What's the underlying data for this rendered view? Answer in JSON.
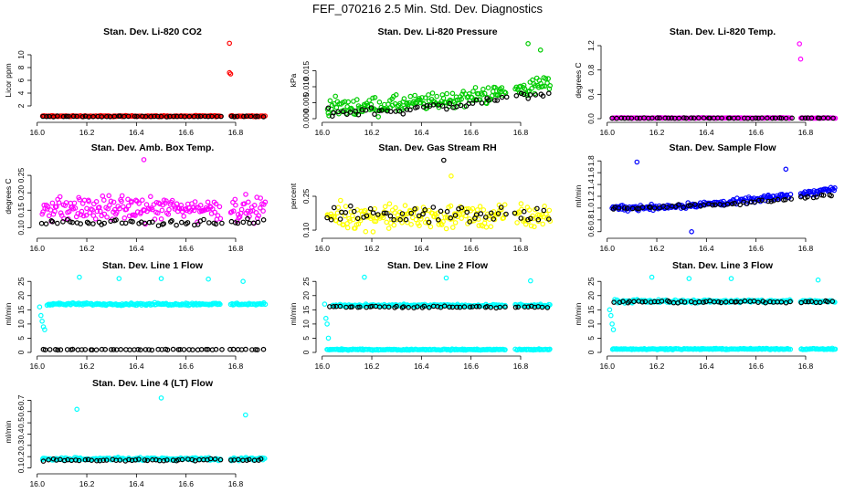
{
  "page": {
    "title": "FEF_070216  2.5 Min. Std. Dev. Diagnostics"
  },
  "chart_data": [
    {
      "type": "scatter",
      "title": "Stan. Dev. Li-820 CO2",
      "ylabel": "Licor ppm",
      "xlim": [
        15.99,
        16.94
      ],
      "ylim": [
        0,
        12
      ],
      "yticks": [
        2,
        4,
        6,
        8,
        10
      ],
      "yticklabels": [
        "2",
        "4",
        "6",
        "8",
        "10"
      ],
      "xticks": [
        16.0,
        16.2,
        16.4,
        16.6,
        16.8
      ],
      "xticklabels": [
        "16.0",
        "16.2",
        "16.4",
        "16.6",
        "16.8"
      ],
      "grid": false,
      "series": [
        {
          "name": "red",
          "color": "#ff0000",
          "level": 0.4,
          "spread": 0.12,
          "segments": [
            [
              16.02,
              16.74
            ],
            [
              16.78,
              16.92
            ]
          ],
          "outliers": [
            [
              16.775,
              11.8
            ],
            [
              16.775,
              7.2
            ],
            [
              16.78,
              7.0
            ]
          ]
        },
        {
          "name": "black",
          "color": "#000000",
          "level": 0.35,
          "spread": 0.08,
          "segments": [
            [
              16.02,
              16.74
            ],
            [
              16.78,
              16.92
            ]
          ]
        }
      ]
    },
    {
      "type": "scatter",
      "title": "Stan. Dev. Li-820 Pressure",
      "ylabel": "kPa",
      "xlim": [
        15.99,
        16.94
      ],
      "ylim": [
        0,
        0.024
      ],
      "yticks": [
        0.0,
        0.005,
        0.01,
        0.015
      ],
      "yticklabels": [
        "0.000",
        "0.005",
        "0.010",
        "0.015"
      ],
      "xticks": [
        16.0,
        16.2,
        16.4,
        16.6,
        16.8
      ],
      "xticklabels": [
        "16.0",
        "16.2",
        "16.4",
        "16.6",
        "16.8"
      ],
      "grid": false,
      "series": [
        {
          "name": "green",
          "color": "#00cc00",
          "level": 0.0035,
          "slope": 0.008,
          "spread": 0.004,
          "segments": [
            [
              16.02,
              16.74
            ],
            [
              16.78,
              16.92
            ]
          ],
          "outliers": [
            [
              16.83,
              0.0235
            ],
            [
              16.88,
              0.0215
            ]
          ]
        },
        {
          "name": "black",
          "color": "#000000",
          "level": 0.002,
          "slope": 0.007,
          "spread": 0.002,
          "segments": [
            [
              16.02,
              16.74
            ],
            [
              16.78,
              16.92
            ]
          ]
        }
      ]
    },
    {
      "type": "scatter",
      "title": "Stan. Dev. Li-820 Temp.",
      "ylabel": "degrees C",
      "xlim": [
        15.99,
        16.94
      ],
      "ylim": [
        0,
        1.26
      ],
      "yticks": [
        0.0,
        0.4,
        0.8,
        1.2
      ],
      "yticklabels": [
        "0.0",
        "0.4",
        "0.8",
        "1.2"
      ],
      "xticks": [
        16.0,
        16.2,
        16.4,
        16.6,
        16.8
      ],
      "xticklabels": [
        "16.0",
        "16.2",
        "16.4",
        "16.6",
        "16.8"
      ],
      "grid": false,
      "series": [
        {
          "name": "magenta",
          "color": "#ff00ff",
          "level": 0.01,
          "spread": 0.01,
          "segments": [
            [
              16.02,
              16.74
            ],
            [
              16.78,
              16.92
            ]
          ],
          "outliers": [
            [
              16.775,
              1.23
            ],
            [
              16.78,
              0.98
            ]
          ]
        },
        {
          "name": "black",
          "color": "#000000",
          "level": 0.01,
          "spread": 0.005,
          "segments": [
            [
              16.02,
              16.74
            ],
            [
              16.78,
              16.92
            ]
          ]
        }
      ]
    },
    {
      "type": "scatter",
      "title": "Stan. Dev. Amb. Box Temp.",
      "ylabel": "degrees C",
      "xlim": [
        15.99,
        16.94
      ],
      "ylim": [
        0.08,
        0.3
      ],
      "yticks": [
        0.1,
        0.15,
        0.2,
        0.25
      ],
      "yticklabels": [
        "0.10",
        "0.15",
        "0.20",
        "0.25"
      ],
      "xticks": [
        16.0,
        16.2,
        16.4,
        16.6,
        16.8
      ],
      "xticklabels": [
        "16.0",
        "16.2",
        "16.4",
        "16.6",
        "16.8"
      ],
      "grid": false,
      "series": [
        {
          "name": "magenta",
          "color": "#ff00ff",
          "level": 0.155,
          "spread": 0.05,
          "segments": [
            [
              16.02,
              16.74
            ],
            [
              16.78,
              16.92
            ]
          ],
          "outliers": [
            [
              16.43,
              0.295
            ]
          ]
        },
        {
          "name": "black",
          "color": "#000000",
          "level": 0.115,
          "spread": 0.012,
          "segments": [
            [
              16.02,
              16.74
            ],
            [
              16.78,
              16.92
            ]
          ]
        }
      ]
    },
    {
      "type": "scatter",
      "title": "Stan. Dev. Gas Stream RH",
      "ylabel": "percent",
      "xlim": [
        15.99,
        16.94
      ],
      "ylim": [
        0.08,
        0.42
      ],
      "yticks": [
        0.1,
        0.25
      ],
      "yticklabels": [
        "0.10",
        "0.25"
      ],
      "xticks": [
        16.0,
        16.2,
        16.4,
        16.6,
        16.8
      ],
      "xticklabels": [
        "16.0",
        "16.2",
        "16.4",
        "16.6",
        "16.8"
      ],
      "grid": false,
      "series": [
        {
          "name": "yellow",
          "color": "#ffff00",
          "level": 0.16,
          "spread": 0.08,
          "segments": [
            [
              16.02,
              16.74
            ],
            [
              16.78,
              16.92
            ]
          ],
          "outliers": [
            [
              16.52,
              0.34
            ]
          ]
        },
        {
          "name": "black",
          "color": "#000000",
          "level": 0.17,
          "spread": 0.05,
          "segments": [
            [
              16.02,
              16.74
            ],
            [
              16.78,
              16.92
            ]
          ],
          "outliers": [
            [
              16.49,
              0.41
            ]
          ]
        }
      ]
    },
    {
      "type": "scatter",
      "title": "Stan. Dev. Sample Flow",
      "ylabel": "ml/min",
      "xlim": [
        15.99,
        16.94
      ],
      "ylim": [
        0.55,
        1.85
      ],
      "yticks": [
        0.6,
        0.8,
        1.0,
        1.2,
        1.4,
        1.6,
        1.8
      ],
      "yticklabels": [
        "0.6",
        "0.8",
        "1.0",
        "1.2",
        "1.4",
        "1.6",
        "1.8"
      ],
      "xticks": [
        16.0,
        16.2,
        16.4,
        16.6,
        16.8
      ],
      "xticklabels": [
        "16.0",
        "16.2",
        "16.4",
        "16.6",
        "16.8"
      ],
      "grid": false,
      "series": [
        {
          "name": "blue",
          "color": "#0000ff",
          "level": 1.0,
          "slope": 0.35,
          "spread": 0.07,
          "segments": [
            [
              16.02,
              16.74
            ],
            [
              16.78,
              16.92
            ]
          ],
          "outliers": [
            [
              16.12,
              1.78
            ],
            [
              16.34,
              0.6
            ],
            [
              16.72,
              1.66
            ]
          ]
        },
        {
          "name": "black",
          "color": "#000000",
          "level": 1.0,
          "slope": 0.25,
          "spread": 0.04,
          "segments": [
            [
              16.02,
              16.74
            ],
            [
              16.78,
              16.92
            ]
          ]
        }
      ]
    },
    {
      "type": "scatter",
      "title": "Stan. Dev. Line 1 Flow",
      "ylabel": "ml/min",
      "xlim": [
        15.99,
        16.94
      ],
      "ylim": [
        0,
        27
      ],
      "yticks": [
        0,
        5,
        10,
        15,
        20,
        25
      ],
      "yticklabels": [
        "0",
        "5",
        "10",
        "15",
        "20",
        "25"
      ],
      "xticks": [
        16.0,
        16.2,
        16.4,
        16.6,
        16.8
      ],
      "xticklabels": [
        "16.0",
        "16.2",
        "16.4",
        "16.6",
        "16.8"
      ],
      "grid": false,
      "series": [
        {
          "name": "cyan",
          "color": "#00ffff",
          "level": 17.0,
          "spread": 0.6,
          "segments": [
            [
              16.04,
              16.74
            ],
            [
              16.78,
              16.92
            ]
          ],
          "outliers": [
            [
              16.01,
              16
            ],
            [
              16.015,
              13
            ],
            [
              16.02,
              11
            ],
            [
              16.025,
              9
            ],
            [
              16.03,
              8
            ],
            [
              16.17,
              26.5
            ],
            [
              16.33,
              26
            ],
            [
              16.5,
              26
            ],
            [
              16.69,
              25.8
            ],
            [
              16.83,
              25
            ]
          ]
        },
        {
          "name": "black",
          "color": "#000000",
          "level": 1.0,
          "spread": 0.2,
          "segments": [
            [
              16.02,
              16.74
            ],
            [
              16.78,
              16.92
            ]
          ]
        }
      ]
    },
    {
      "type": "scatter",
      "title": "Stan. Dev. Line 2 Flow",
      "ylabel": "ml/min",
      "xlim": [
        15.99,
        16.94
      ],
      "ylim": [
        0,
        27
      ],
      "yticks": [
        0,
        5,
        10,
        15,
        20,
        25
      ],
      "yticklabels": [
        "0",
        "5",
        "10",
        "15",
        "20",
        "25"
      ],
      "xticks": [
        16.0,
        16.2,
        16.4,
        16.6,
        16.8
      ],
      "xticklabels": [
        "16.0",
        "16.2",
        "16.4",
        "16.6",
        "16.8"
      ],
      "grid": false,
      "series": [
        {
          "name": "cyan-high",
          "color": "#00ffff",
          "level": 16.5,
          "spread": 0.6,
          "segments": [
            [
              16.04,
              16.74
            ],
            [
              16.78,
              16.92
            ]
          ],
          "outliers": [
            [
              16.01,
              17
            ],
            [
              16.015,
              12
            ],
            [
              16.02,
              10
            ],
            [
              16.025,
              5
            ],
            [
              16.17,
              26.5
            ],
            [
              16.5,
              26.2
            ],
            [
              16.84,
              25.2
            ]
          ]
        },
        {
          "name": "cyan-low",
          "color": "#00ffff",
          "level": 1.0,
          "spread": 0.3,
          "segments": [
            [
              16.02,
              16.74
            ],
            [
              16.78,
              16.92
            ]
          ]
        },
        {
          "name": "black",
          "color": "#000000",
          "level": 16.0,
          "spread": 0.5,
          "segments": [
            [
              16.03,
              16.74
            ],
            [
              16.78,
              16.92
            ]
          ]
        }
      ]
    },
    {
      "type": "scatter",
      "title": "Stan. Dev. Line 3 Flow",
      "ylabel": "ml/min",
      "xlim": [
        15.99,
        16.94
      ],
      "ylim": [
        0,
        27
      ],
      "yticks": [
        0,
        5,
        10,
        15,
        20,
        25
      ],
      "yticklabels": [
        "0",
        "5",
        "10",
        "15",
        "20",
        "25"
      ],
      "xticks": [
        16.0,
        16.2,
        16.4,
        16.6,
        16.8
      ],
      "xticklabels": [
        "16.0",
        "16.2",
        "16.4",
        "16.6",
        "16.8"
      ],
      "grid": false,
      "series": [
        {
          "name": "cyan-high",
          "color": "#00ffff",
          "level": 18.0,
          "spread": 0.8,
          "segments": [
            [
              16.03,
              16.74
            ],
            [
              16.78,
              16.92
            ]
          ],
          "outliers": [
            [
              16.01,
              15
            ],
            [
              16.015,
              13
            ],
            [
              16.02,
              10
            ],
            [
              16.025,
              8
            ],
            [
              16.18,
              26.5
            ],
            [
              16.33,
              26
            ],
            [
              16.5,
              26
            ],
            [
              16.85,
              25.5
            ]
          ]
        },
        {
          "name": "cyan-low",
          "color": "#00ffff",
          "level": 1.2,
          "spread": 0.3,
          "segments": [
            [
              16.02,
              16.74
            ],
            [
              16.78,
              16.92
            ]
          ]
        },
        {
          "name": "black",
          "color": "#000000",
          "level": 17.8,
          "spread": 0.6,
          "segments": [
            [
              16.03,
              16.74
            ],
            [
              16.78,
              16.92
            ]
          ]
        }
      ]
    },
    {
      "type": "scatter",
      "title": "Stan. Dev. Line 4 (LT) Flow",
      "ylabel": "ml/min",
      "xlim": [
        15.99,
        16.94
      ],
      "ylim": [
        0.08,
        0.76
      ],
      "yticks": [
        0.1,
        0.2,
        0.3,
        0.4,
        0.5,
        0.6,
        0.7
      ],
      "yticklabels": [
        "0.1",
        "0.2",
        "0.3",
        "0.4",
        "0.5",
        "0.6",
        "0.7"
      ],
      "xticks": [
        16.0,
        16.2,
        16.4,
        16.6,
        16.8
      ],
      "xticklabels": [
        "16.0",
        "16.2",
        "16.4",
        "16.6",
        "16.8"
      ],
      "grid": false,
      "series": [
        {
          "name": "cyan",
          "color": "#00ffff",
          "level": 0.18,
          "spread": 0.02,
          "segments": [
            [
              16.02,
              16.74
            ],
            [
              16.78,
              16.92
            ]
          ],
          "outliers": [
            [
              16.16,
              0.62
            ],
            [
              16.5,
              0.72
            ],
            [
              16.84,
              0.57
            ]
          ]
        },
        {
          "name": "black",
          "color": "#000000",
          "level": 0.17,
          "spread": 0.015,
          "segments": [
            [
              16.03,
              16.74
            ],
            [
              16.78,
              16.92
            ]
          ]
        }
      ]
    }
  ]
}
